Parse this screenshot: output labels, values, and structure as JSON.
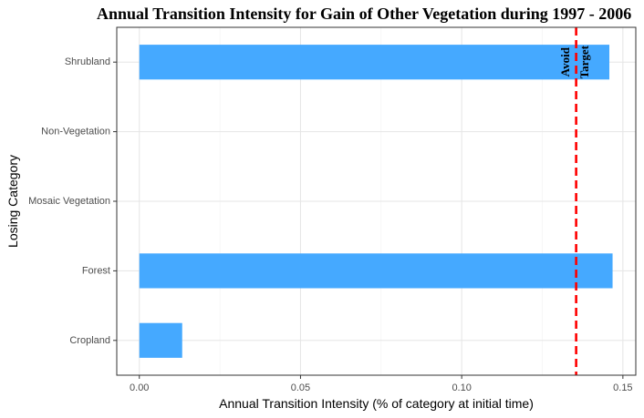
{
  "chart_data": {
    "type": "bar",
    "orientation": "horizontal",
    "title": "Annual Transition Intensity for Gain of  Other Vegetation during 1997 - 2006",
    "xlabel": "Annual Transition Intensity (% of category at initial time)",
    "ylabel": "Losing Category",
    "categories": [
      "Cropland",
      "Forest",
      "Mosaic Vegetation",
      "Non-Vegetation",
      "Shrubland"
    ],
    "values": [
      0.0133,
      0.1468,
      0,
      0,
      0.1458
    ],
    "xlim": [
      -0.007,
      0.154
    ],
    "xticks": [
      0.0,
      0.05,
      0.1,
      0.15
    ],
    "xtick_labels": [
      "0.00",
      "0.05",
      "0.10",
      "0.15"
    ],
    "bar_color": "#45A9FF",
    "reference_line": {
      "value": 0.1355,
      "color": "#FF0000",
      "style": "dashed"
    },
    "annotations": [
      "Avoid",
      "Target"
    ],
    "grid": true
  }
}
